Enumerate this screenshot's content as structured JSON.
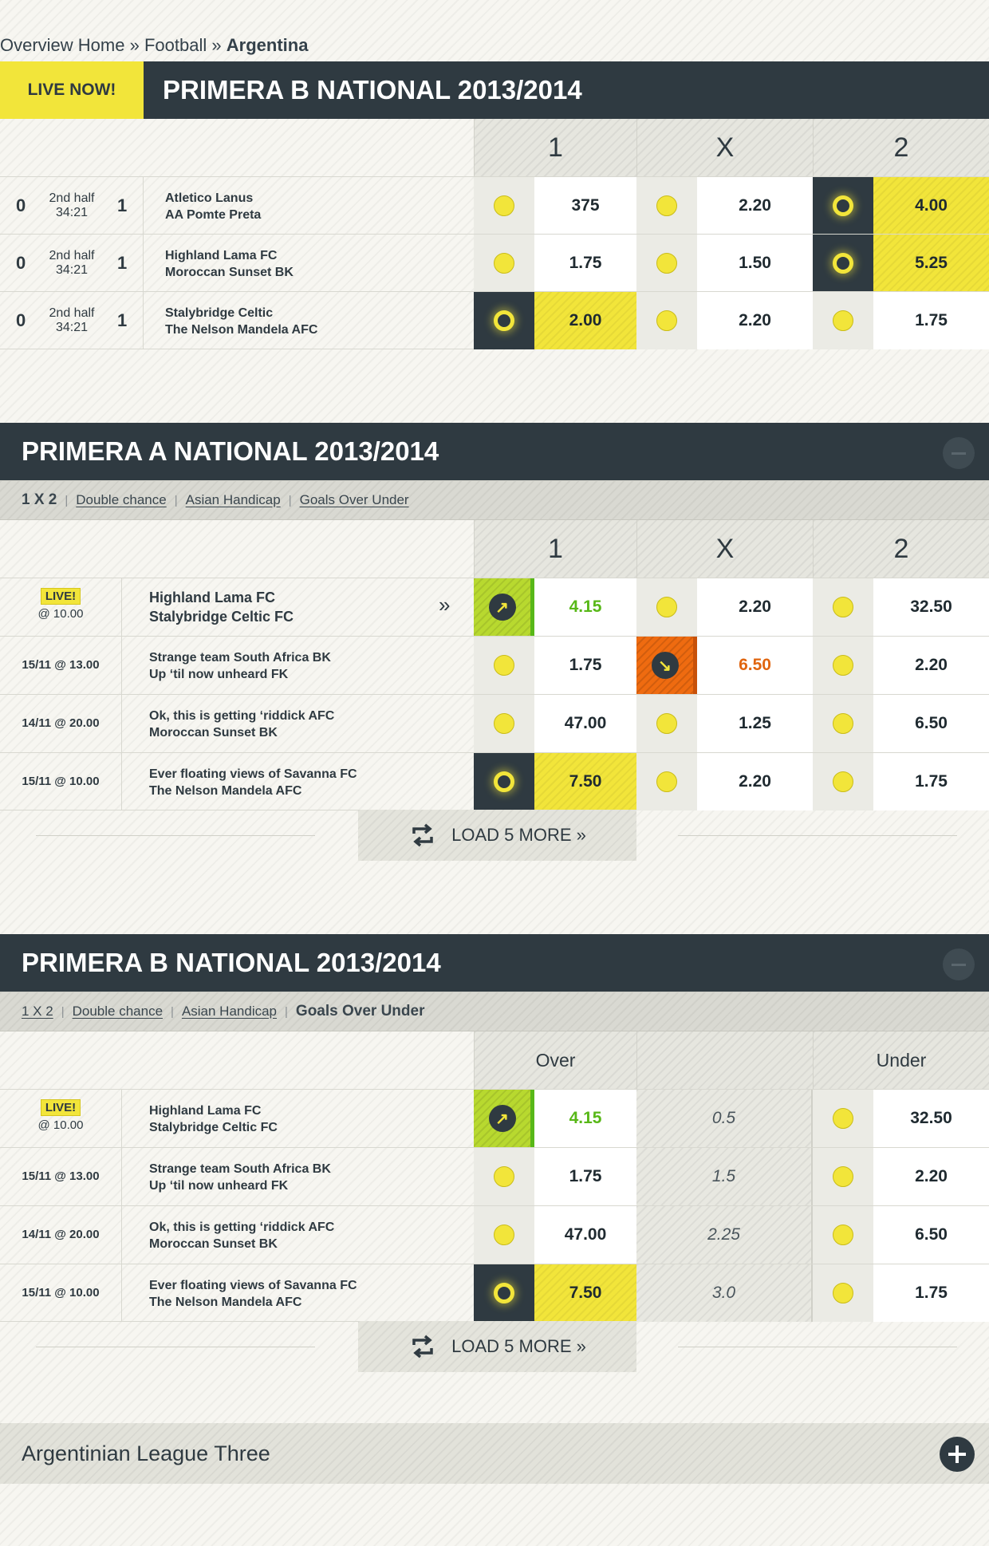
{
  "breadcrumb": {
    "part1": "Overview Home",
    "sep1": "»",
    "part2": "Football",
    "sep2": "»",
    "part3": "Argentina"
  },
  "live_section": {
    "badge": "LIVE NOW!",
    "title": "PRIMERA B NATIONAL 2013/2014",
    "columns": [
      "1",
      "X",
      "2"
    ],
    "rows": [
      {
        "home_score": "0",
        "period": "2nd half",
        "clock": "34:21",
        "away_score": "1",
        "team1": "Atletico Lanus",
        "team2": "AA Pomte Preta",
        "odds": [
          "375",
          "2.20",
          "4.00"
        ],
        "selected": 2
      },
      {
        "home_score": "0",
        "period": "2nd half",
        "clock": "34:21",
        "away_score": "1",
        "team1": "Highland Lama FC",
        "team2": "Moroccan Sunset BK",
        "odds": [
          "1.75",
          "1.50",
          "5.25"
        ],
        "selected": 2
      },
      {
        "home_score": "0",
        "period": "2nd half",
        "clock": "34:21",
        "away_score": "1",
        "team1": "Stalybridge Celtic",
        "team2": "The Nelson Mandela AFC",
        "odds": [
          "2.00",
          "2.20",
          "1.75"
        ],
        "selected": 0
      }
    ]
  },
  "section_a": {
    "title": "PRIMERA A NATIONAL 2013/2014",
    "tabs": [
      "1 X 2",
      "Double chance",
      "Asian Handicap",
      "Goals Over Under"
    ],
    "active_tab": 0,
    "columns": [
      "1",
      "X",
      "2"
    ],
    "rows": [
      {
        "live": "LIVE!",
        "time": "@ 10.00",
        "team1": "Highland Lama FC",
        "team2": "Stalybridge Celtic FC",
        "odds": [
          "4.15",
          "2.20",
          "32.50"
        ],
        "more_icon": "»"
      },
      {
        "date": "15/11 @ 13.00",
        "team1": "Strange team South Africa BK",
        "team2": "Up ‘til now unheard FK",
        "odds": [
          "1.75",
          "6.50",
          "2.20"
        ]
      },
      {
        "date": "14/11 @ 20.00",
        "team1": "Ok, this is getting ‘riddick AFC",
        "team2": "Moroccan Sunset BK",
        "odds": [
          "47.00",
          "1.25",
          "6.50"
        ]
      },
      {
        "date": "15/11 @ 10.00",
        "team1": "Ever floating views of Savanna FC",
        "team2": "The Nelson Mandela AFC",
        "odds": [
          "7.50",
          "2.20",
          "1.75"
        ]
      }
    ],
    "load_more": "LOAD 5 MORE »"
  },
  "section_b": {
    "title": "PRIMERA B NATIONAL 2013/2014",
    "tabs": [
      "1 X 2",
      "Double chance",
      "Asian Handicap",
      "Goals Over Under"
    ],
    "active_tab": 3,
    "columns": [
      "Over",
      "",
      "Under"
    ],
    "rows": [
      {
        "live": "LIVE!",
        "time": "@ 10.00",
        "team1": "Highland Lama FC",
        "team2": "Stalybridge Celtic FC",
        "over": "4.15",
        "line": "0.5",
        "under": "32.50"
      },
      {
        "date": "15/11 @ 13.00",
        "team1": "Strange team South Africa BK",
        "team2": "Up ‘til now unheard FK",
        "over": "1.75",
        "line": "1.5",
        "under": "2.20"
      },
      {
        "date": "14/11 @ 20.00",
        "team1": "Ok, this is getting ‘riddick AFC",
        "team2": "Moroccan Sunset BK",
        "over": "47.00",
        "line": "2.25",
        "under": "6.50"
      },
      {
        "date": "15/11 @ 10.00",
        "team1": "Ever floating views of Savanna FC",
        "team2": "The Nelson Mandela AFC",
        "over": "7.50",
        "line": "3.0",
        "under": "1.75"
      }
    ],
    "load_more": "LOAD 5 MORE »"
  },
  "collapsed_section": {
    "title": "Argentinian League Three"
  },
  "colors": {
    "accent_yellow": "#f2e53a",
    "dark": "#2f3a41",
    "up_green": "#58b818",
    "down_orange": "#ef6b10"
  },
  "icons": [
    "collapse-icon",
    "expand-icon",
    "refresh-icon",
    "arrow-up-right-icon",
    "arrow-down-right-icon",
    "double-chevron-right-icon",
    "bet-dot-icon"
  ]
}
